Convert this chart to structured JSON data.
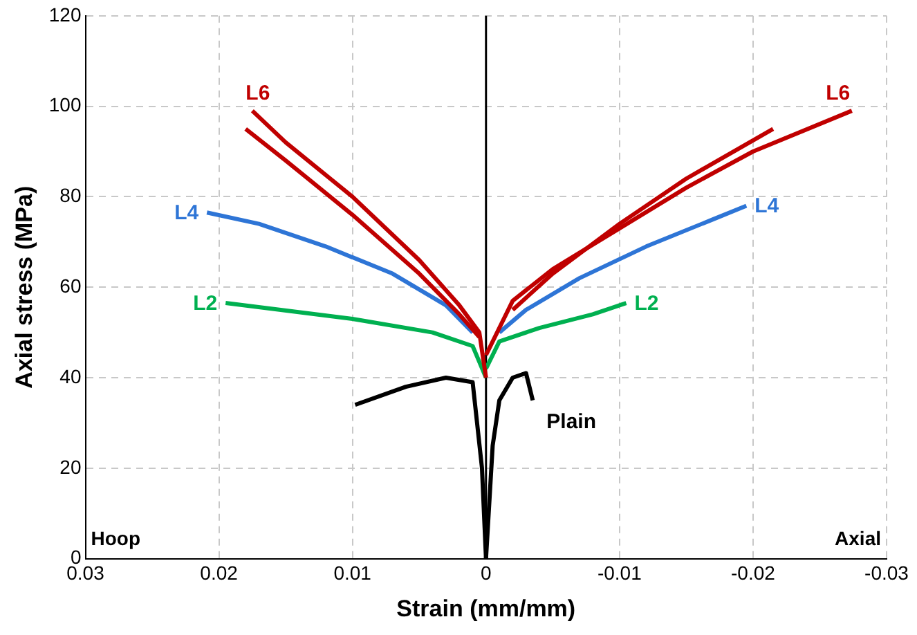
{
  "chart_data": {
    "type": "line",
    "xlabel": "Strain (mm/mm)",
    "ylabel": "Axial stress (MPa)",
    "xlim": [
      0.03,
      -0.03
    ],
    "xticks": [
      0.03,
      0.02,
      0.01,
      0,
      -0.01,
      -0.02,
      -0.03
    ],
    "ylim": [
      0,
      120
    ],
    "yticks": [
      0,
      20,
      40,
      60,
      80,
      100,
      120
    ],
    "grid": true,
    "legend": false,
    "marker": "none",
    "ref_lines": [
      {
        "axis": "x",
        "value": 0,
        "color": "#000000"
      }
    ],
    "annotations": [
      "Hoop",
      "Axial"
    ],
    "series": [
      {
        "name": "L6",
        "color": "#c00000",
        "x": [
          0,
          0.0005,
          0.002,
          0.005,
          0.01,
          0.015,
          0.0175
        ],
        "values": [
          40,
          50,
          56,
          66,
          80,
          92,
          99
        ]
      },
      {
        "color": "#c00000",
        "x": [
          0.0005,
          0.002,
          0.005,
          0.01,
          0.015,
          0.018
        ],
        "values": [
          49,
          54,
          63,
          76,
          88,
          95
        ]
      },
      {
        "name": "L6",
        "color": "#c00000",
        "x": [
          0,
          -0.002,
          -0.005,
          -0.01,
          -0.015,
          -0.02,
          -0.0274
        ],
        "values": [
          45,
          57,
          64,
          73,
          82,
          90,
          99
        ]
      },
      {
        "color": "#c00000",
        "x": [
          -0.002,
          -0.005,
          -0.01,
          -0.015,
          -0.0215
        ],
        "values": [
          55,
          63,
          74,
          84,
          95
        ]
      },
      {
        "name": "L4",
        "color": "#2e75d6",
        "x": [
          0.001,
          0.003,
          0.007,
          0.012,
          0.017,
          0.0209
        ],
        "values": [
          50,
          56,
          63,
          69,
          74,
          76.5
        ]
      },
      {
        "name": "L4",
        "color": "#2e75d6",
        "x": [
          -0.001,
          -0.003,
          -0.007,
          -0.012,
          -0.017,
          -0.0195
        ],
        "values": [
          50,
          55,
          62,
          69,
          75,
          78
        ]
      },
      {
        "name": "L2",
        "color": "#00b050",
        "x": [
          0,
          0.001,
          0.004,
          0.01,
          0.0195
        ],
        "values": [
          40,
          47,
          50,
          53,
          56.5
        ]
      },
      {
        "name": "L2",
        "color": "#00b050",
        "x": [
          0,
          -0.001,
          -0.004,
          -0.008,
          -0.0105
        ],
        "values": [
          42,
          48,
          51,
          54,
          56.5
        ]
      },
      {
        "color": "#000000",
        "x": [
          0.0098,
          0.006,
          0.003,
          0.001,
          0.0003,
          0
        ],
        "values": [
          34,
          38,
          40,
          39,
          20,
          0
        ]
      },
      {
        "name": "Plain",
        "color": "#000000",
        "x": [
          0,
          -0.0005,
          -0.001,
          -0.002,
          -0.003,
          -0.0035
        ],
        "values": [
          0,
          25,
          35,
          40,
          41,
          35
        ]
      }
    ]
  }
}
